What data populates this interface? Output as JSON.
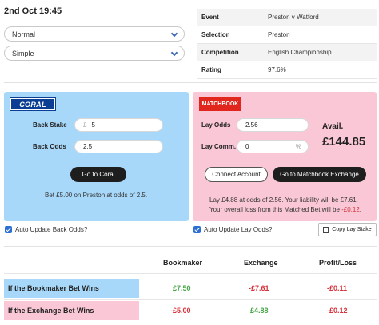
{
  "header": {
    "date": "2nd Oct 19:45"
  },
  "selects": [
    {
      "value": "Normal",
      "icon": "chevron-down-icon"
    },
    {
      "value": "Simple",
      "icon": "chevron-down-icon"
    }
  ],
  "event_info": [
    {
      "key": "Event",
      "value": "Preston v Watford"
    },
    {
      "key": "Selection",
      "value": "Preston"
    },
    {
      "key": "Competition",
      "value": "English Championship"
    },
    {
      "key": "Rating",
      "value": "97.6%"
    }
  ],
  "back": {
    "logo": "CORAL",
    "stake_label": "Back Stake",
    "stake_prefix": "£",
    "stake_value": "5",
    "odds_label": "Back Odds",
    "odds_value": "2.5",
    "go_button": "Go to Coral",
    "message": "Bet £5.00 on Preston at odds of 2.5."
  },
  "lay": {
    "logo": "MATCHBOOK",
    "odds_label": "Lay Odds",
    "odds_value": "2.56",
    "comm_label": "Lay Comm.",
    "comm_value": "0",
    "comm_suffix": "%",
    "avail_label": "Avail.",
    "avail_value": "£144.85",
    "connect_button": "Connect Account",
    "go_button": "Go to Matchbook Exchange",
    "message_line1_pre": "Lay £4.88 at odds of 2.56. Your liability will be £7.61.",
    "message_line2_pre": "Your overall loss from this Matched Bet will be ",
    "message_line2_loss": "-£0.12",
    "message_line2_post": "."
  },
  "options": {
    "auto_back": "Auto Update Back Odds?",
    "auto_lay": "Auto Update Lay Odds?",
    "copy_button": "Copy Lay Stake"
  },
  "results": {
    "headers": [
      "Bookmaker",
      "Exchange",
      "Profit/Loss"
    ],
    "rows": [
      {
        "name": "If the Bookmaker Bet Wins",
        "bookmaker": "£7.50",
        "exchange": "-£7.61",
        "profit": "-£0.11"
      },
      {
        "name": "If the Exchange Bet Wins",
        "bookmaker": "-£5.00",
        "exchange": "£4.88",
        "profit": "-£0.12"
      }
    ]
  },
  "colors": {
    "back_panel": "#a8d8f9",
    "lay_panel": "#f9c7d5",
    "positive": "#46a546",
    "negative": "#d8333c",
    "coral_brand": "#0b3f94",
    "matchbook_brand": "#e0261d"
  }
}
